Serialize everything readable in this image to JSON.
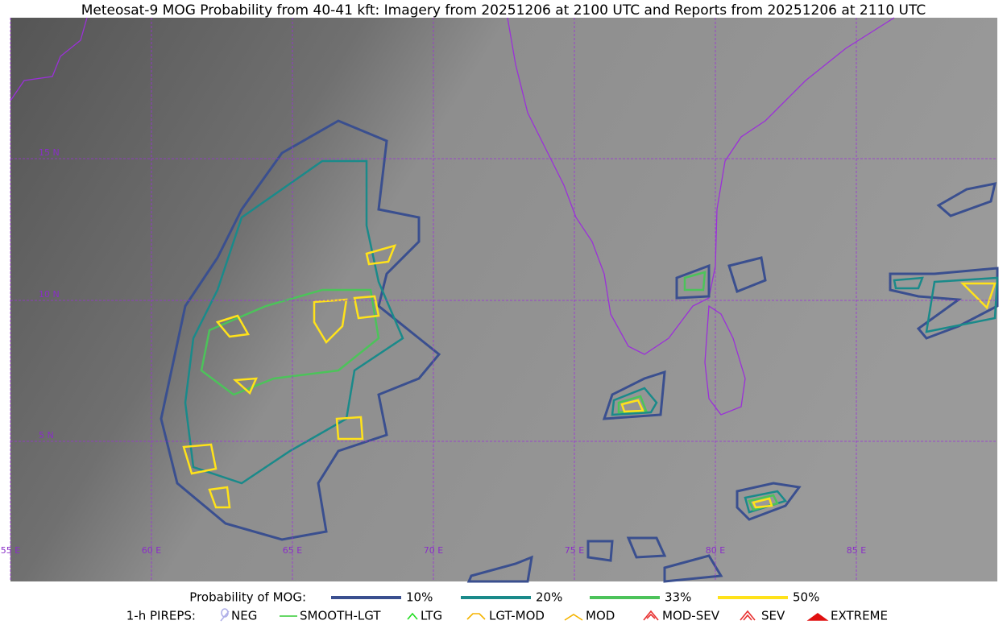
{
  "title": "Meteosat-9 MOG Probability from 40-41 kft: Imagery from 20251206 at 2100 UTC and Reports from 20251206 at 2110 UTC",
  "map": {
    "lat_labels": [
      "15 N",
      "10 N",
      "5 N"
    ],
    "lon_labels": [
      "55 E",
      "60 E",
      "65 E",
      "70 E",
      "75 E",
      "80 E",
      "85 E"
    ]
  },
  "legend": {
    "mog": {
      "title": "Probability of MOG:",
      "items": [
        {
          "label": "10%",
          "color": "#3a4f8f"
        },
        {
          "label": "20%",
          "color": "#1a8a8a"
        },
        {
          "label": "33%",
          "color": "#4cc35a"
        },
        {
          "label": "50%",
          "color": "#ffe21a"
        }
      ]
    },
    "pireps": {
      "title": "1-h PIREPS:",
      "items": [
        {
          "label": "NEG",
          "color": "#b0b0e8"
        },
        {
          "label": "SMOOTH-LGT",
          "color": "#33cc33"
        },
        {
          "label": "LTG",
          "color": "#22dd22"
        },
        {
          "label": "LGT-MOD",
          "color": "#f5b400"
        },
        {
          "label": "MOD",
          "color": "#f5b400"
        },
        {
          "label": "MOD-SEV",
          "color": "#e83030"
        },
        {
          "label": "SEV",
          "color": "#e83030"
        },
        {
          "label": "EXTREME",
          "color": "#e01010"
        }
      ]
    }
  }
}
